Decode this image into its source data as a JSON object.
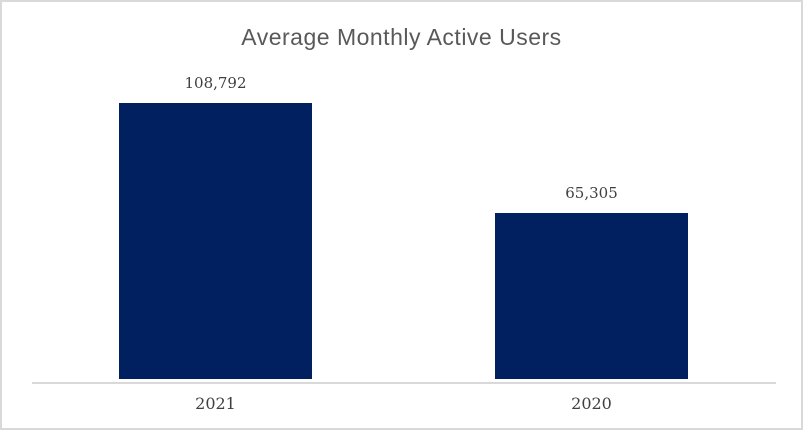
{
  "window": {
    "background": "#FFFFFF",
    "border_color": "#D9D9D9"
  },
  "chart_data": {
    "type": "bar",
    "title": "Average Monthly Active Users",
    "categories": [
      "2021",
      "2020"
    ],
    "values": [
      108792,
      65305
    ],
    "value_labels": [
      "108,792",
      "65,305"
    ],
    "ylim": [
      0,
      120000
    ],
    "grid": false,
    "legend": false,
    "bar_color": "#002060",
    "axis_line_color": "#D9D9D9",
    "title_color": "#595959",
    "label_color": "#404040"
  }
}
